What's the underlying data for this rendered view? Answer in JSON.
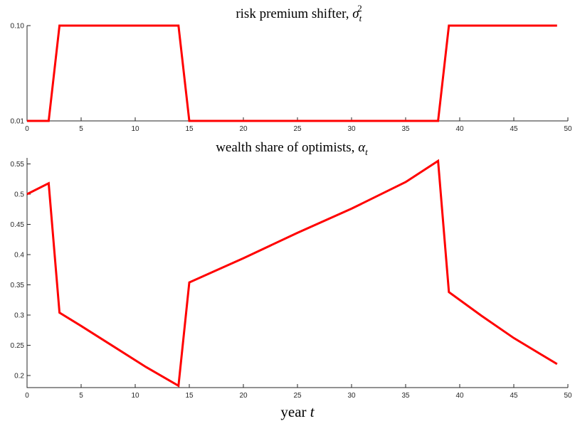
{
  "chart_data": [
    {
      "type": "line",
      "title_text": "risk premium shifter, ",
      "title_math": "σ",
      "title_sub": "t",
      "title_sup": "2",
      "xlabel": "",
      "ylabel": "",
      "xlim": [
        0,
        50
      ],
      "ylim": [
        0.01,
        0.1
      ],
      "xticks": [
        "0",
        "5",
        "10",
        "15",
        "20",
        "25",
        "30",
        "35",
        "40",
        "45",
        "50"
      ],
      "yticks": [
        "0.01",
        "0.10"
      ],
      "grid": false,
      "color": "#ff0000",
      "series": [
        {
          "x": [
            0,
            2,
            3,
            14,
            15,
            38,
            39,
            49
          ],
          "y": [
            0.01,
            0.01,
            0.1,
            0.1,
            0.01,
            0.01,
            0.1,
            0.1
          ]
        }
      ]
    },
    {
      "type": "line",
      "title_text": "wealth share of optimists, ",
      "title_math": "α",
      "title_sub": "t",
      "xlabel_text": "year ",
      "xlabel_math": "t",
      "ylabel": "",
      "xlim": [
        0,
        50
      ],
      "ylim": [
        0.18,
        0.56
      ],
      "xticks": [
        "0",
        "5",
        "10",
        "15",
        "20",
        "25",
        "30",
        "35",
        "40",
        "45",
        "50"
      ],
      "yticks": [
        "0.2",
        "0.25",
        "0.3",
        "0.35",
        "0.4",
        "0.45",
        "0.5",
        "0.55"
      ],
      "grid": false,
      "color": "#ff0000",
      "series": [
        {
          "x": [
            0,
            2,
            3,
            5,
            8,
            11,
            14,
            15,
            20,
            25,
            30,
            35,
            38,
            39,
            42,
            45,
            49
          ],
          "y": [
            0.5,
            0.518,
            0.304,
            0.282,
            0.248,
            0.214,
            0.183,
            0.354,
            0.394,
            0.436,
            0.476,
            0.52,
            0.555,
            0.338,
            0.299,
            0.262,
            0.219
          ]
        }
      ]
    }
  ]
}
